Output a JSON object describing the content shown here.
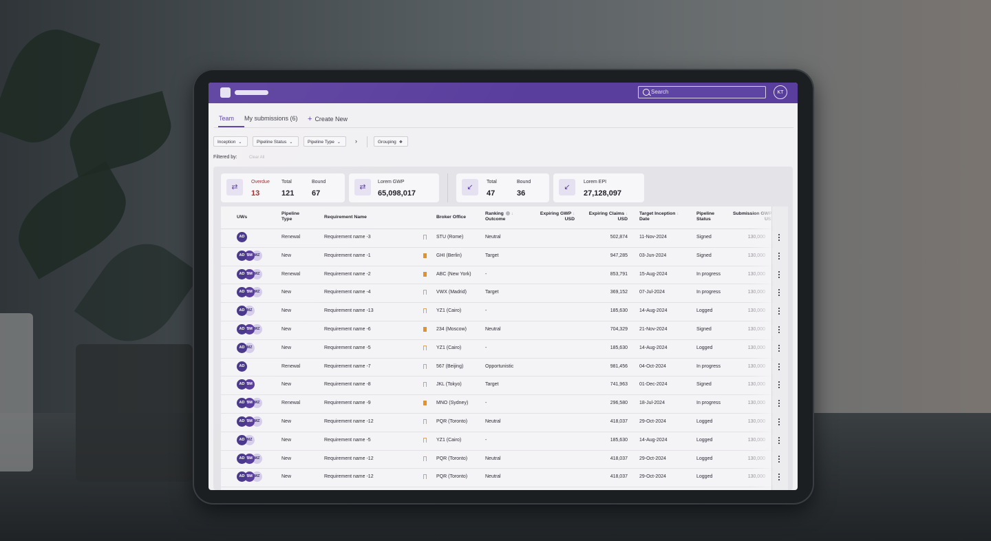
{
  "header": {
    "search_placeholder": "Search",
    "user_initials": "KT",
    "brand_color": "#5a3e9e"
  },
  "tabs": [
    {
      "label": "Team",
      "active": true
    },
    {
      "label": "My submissions (6)",
      "active": false
    },
    {
      "label": "Create New",
      "active": false
    }
  ],
  "filters": {
    "items": [
      {
        "label": "Inception"
      },
      {
        "label": "Pipeline Status"
      },
      {
        "label": "Pipeline Type"
      }
    ],
    "grouping_label": "Grouping",
    "filtered_by_label": "Filtered by:",
    "clear_all_label": "Clear All"
  },
  "summary": {
    "group1": {
      "overdue_label": "Overdue",
      "overdue_value": "13",
      "total_label": "Total",
      "total_value": "121",
      "bound_label": "Bound",
      "bound_value": "67"
    },
    "gwp": {
      "label": "Lorem GWP",
      "value": "65,098,017"
    },
    "group2": {
      "total_label": "Total",
      "total_value": "47",
      "bound_label": "Bound",
      "bound_value": "36"
    },
    "epi": {
      "label": "Lorem EPI",
      "value": "27,128,097"
    }
  },
  "table": {
    "columns": {
      "uws": "UWs",
      "pipeline_type_1": "Pipeline",
      "pipeline_type_2": "Type",
      "requirement_name": "Requirement Name",
      "broker_office": "Broker Office",
      "ranking_1": "Ranking",
      "ranking_2": "Outcome",
      "gwp_1": "Expiring GWP",
      "gwp_2": "USD",
      "claims_1": "Expiring Claims",
      "claims_2": "USD",
      "inception_1": "Target Inception",
      "inception_2": "Date",
      "status_1": "Pipeline",
      "status_2": "Status",
      "submission_1": "Submission GWP",
      "submission_2": "USD"
    },
    "rows": [
      {
        "uws": [
          "AD"
        ],
        "type": "Renewal",
        "name": "Requirement name -3",
        "bookmarked": false,
        "broker": "STU (Rome)",
        "ranking": "Neutral",
        "claims": "502,874",
        "date": "11-Nov-2024",
        "status": "Signed",
        "submission": "130,000"
      },
      {
        "uws": [
          "AD",
          "BM",
          "MZ"
        ],
        "type": "New",
        "name": "Requirement name -1",
        "bookmarked": true,
        "broker": "GHI (Berlin)",
        "ranking": "Target",
        "claims": "947,285",
        "date": "03-Jun-2024",
        "status": "Signed",
        "submission": "130,000"
      },
      {
        "uws": [
          "AD",
          "BM",
          "MZ"
        ],
        "type": "Renewal",
        "name": "Requirement name -2",
        "bookmarked": true,
        "broker": "ABC (New York)",
        "ranking": "-",
        "claims": "853,791",
        "date": "15-Aug-2024",
        "status": "In progress",
        "submission": "130,000"
      },
      {
        "uws": [
          "AD",
          "BM",
          "MZ"
        ],
        "type": "New",
        "name": "Requirement name -4",
        "bookmarked": false,
        "broker": "VWX (Madrid)",
        "ranking": "Target",
        "claims": "369,152",
        "date": "07-Jul-2024",
        "status": "In progress",
        "submission": "130,000"
      },
      {
        "uws": [
          "AD",
          "MZ"
        ],
        "type": "New",
        "name": "Requirement name -13",
        "bookmarked": false,
        "broker": "YZ1 (Cairo)",
        "ranking": "-",
        "claims": "185,630",
        "date": "14-Aug-2024",
        "status": "Logged",
        "submission": "130,000"
      },
      {
        "uws": [
          "AD",
          "BM",
          "MZ"
        ],
        "type": "New",
        "name": "Requirement name -6",
        "bookmarked": true,
        "broker": "234 (Moscow)",
        "ranking": "Neutral",
        "claims": "704,329",
        "date": "21-Nov-2024",
        "status": "Signed",
        "submission": "130,000"
      },
      {
        "uws": [
          "AD",
          "MZ"
        ],
        "type": "New",
        "name": "Requirement name -5",
        "bookmarked": false,
        "broker": "YZ1 (Cairo)",
        "ranking": "-",
        "claims": "185,630",
        "date": "14-Aug-2024",
        "status": "Logged",
        "submission": "130,000"
      },
      {
        "uws": [
          "AD"
        ],
        "type": "Renewal",
        "name": "Requirement name -7",
        "bookmarked": false,
        "broker": "567 (Beijing)",
        "ranking": "Opportunistic",
        "claims": "981,456",
        "date": "04-Oct-2024",
        "status": "In progress",
        "submission": "130,000"
      },
      {
        "uws": [
          "AD",
          "BM"
        ],
        "type": "New",
        "name": "Requirement name -8",
        "bookmarked": false,
        "broker": "JKL (Tokyo)",
        "ranking": "Target",
        "claims": "741,963",
        "date": "01-Dec-2024",
        "status": "Signed",
        "submission": "130,000"
      },
      {
        "uws": [
          "AD",
          "BM",
          "MZ"
        ],
        "type": "Renewal",
        "name": "Requirement name -9",
        "bookmarked": true,
        "broker": "MNO (Sydney)",
        "ranking": "-",
        "claims": "296,580",
        "date": "18-Jul-2024",
        "status": "In progress",
        "submission": "130,000"
      },
      {
        "uws": [
          "AD",
          "BM",
          "MZ"
        ],
        "type": "New",
        "name": "Requirement name -12",
        "bookmarked": false,
        "broker": "PQR (Toronto)",
        "ranking": "Neutral",
        "claims": "418,037",
        "date": "29-Oct-2024",
        "status": "Logged",
        "submission": "130,000"
      },
      {
        "uws": [
          "AD",
          "MZ"
        ],
        "type": "New",
        "name": "Requirement name -5",
        "bookmarked": false,
        "broker": "YZ1 (Cairo)",
        "ranking": "-",
        "claims": "185,630",
        "date": "14-Aug-2024",
        "status": "Logged",
        "submission": "130,000"
      },
      {
        "uws": [
          "AD",
          "BM",
          "MZ"
        ],
        "type": "New",
        "name": "Requirement name -12",
        "bookmarked": false,
        "broker": "PQR (Toronto)",
        "ranking": "Neutral",
        "claims": "418,037",
        "date": "29-Oct-2024",
        "status": "Logged",
        "submission": "130,000"
      },
      {
        "uws": [
          "AD",
          "BM",
          "MZ"
        ],
        "type": "New",
        "name": "Requirement name -12",
        "bookmarked": false,
        "broker": "PQR (Toronto)",
        "ranking": "Neutral",
        "claims": "418,037",
        "date": "29-Oct-2024",
        "status": "Logged",
        "submission": "130,000"
      }
    ]
  }
}
